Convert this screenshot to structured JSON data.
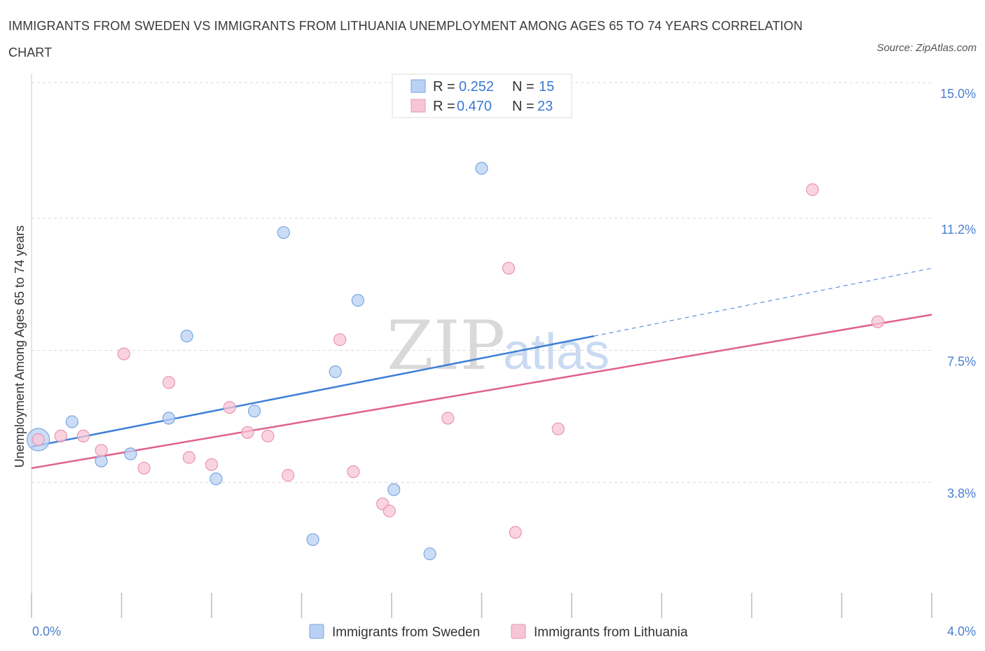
{
  "title": "IMMIGRANTS FROM SWEDEN VS IMMIGRANTS FROM LITHUANIA UNEMPLOYMENT AMONG AGES 65 TO 74 YEARS CORRELATION CHART",
  "source": "Source: ZipAtlas.com",
  "watermark": {
    "zip": "ZIP",
    "atlas": "atlas"
  },
  "colors": {
    "sweden_fill": "#b9d1f3",
    "sweden_stroke": "#7ba6e0",
    "sweden_line": "#3f7fd6",
    "lithuania_fill": "#f7c6d6",
    "lithuania_stroke": "#e895b2",
    "lithuania_line": "#e0608e",
    "grid": "#d8d8d8",
    "axis_text": "#4a7fd0"
  },
  "legend": {
    "sweden": {
      "r_label": "R = ",
      "r_value": "0.252",
      "n_label": "N = ",
      "n_value": "15"
    },
    "lithuania": {
      "r_label": "R = ",
      "r_value": "0.470",
      "n_label": "N = ",
      "n_value": "23"
    }
  },
  "chart_data": {
    "type": "scatter",
    "title": "IMMIGRANTS FROM SWEDEN VS IMMIGRANTS FROM LITHUANIA UNEMPLOYMENT AMONG AGES 65 TO 74 YEARS CORRELATION CHART",
    "xlabel": "",
    "ylabel": "Unemployment Among Ages 65 to 74 years",
    "xlim": [
      0.0,
      4.0
    ],
    "ylim": [
      0.0,
      15.0
    ],
    "x_tick_labels": [
      "0.0%",
      "4.0%"
    ],
    "y_ticks": [
      3.8,
      7.5,
      11.2,
      15.0
    ],
    "y_tick_labels": [
      "3.8%",
      "7.5%",
      "11.2%",
      "15.0%"
    ],
    "grid": true,
    "legend_position": "top-center",
    "series": [
      {
        "name": "Immigrants from Sweden",
        "color": "#7ba6e0",
        "points": [
          {
            "x": 0.03,
            "y": 5.0,
            "big": true
          },
          {
            "x": 0.18,
            "y": 5.5
          },
          {
            "x": 0.31,
            "y": 4.4
          },
          {
            "x": 0.44,
            "y": 4.6
          },
          {
            "x": 0.61,
            "y": 5.6
          },
          {
            "x": 0.69,
            "y": 7.9
          },
          {
            "x": 0.82,
            "y": 3.9
          },
          {
            "x": 0.99,
            "y": 5.8
          },
          {
            "x": 1.12,
            "y": 10.8
          },
          {
            "x": 1.25,
            "y": 2.2
          },
          {
            "x": 1.35,
            "y": 6.9
          },
          {
            "x": 1.45,
            "y": 8.9
          },
          {
            "x": 1.61,
            "y": 3.6
          },
          {
            "x": 1.77,
            "y": 1.8
          },
          {
            "x": 2.0,
            "y": 12.6
          }
        ],
        "trend": {
          "x0": 0.0,
          "y0": 4.8,
          "x1": 2.5,
          "y1": 7.9,
          "dash_to_x": 4.0,
          "dash_to_y": 9.8
        }
      },
      {
        "name": "Immigrants from Lithuania",
        "color": "#e895b2",
        "points": [
          {
            "x": 0.03,
            "y": 5.0
          },
          {
            "x": 0.13,
            "y": 5.1
          },
          {
            "x": 0.23,
            "y": 5.1
          },
          {
            "x": 0.31,
            "y": 4.7
          },
          {
            "x": 0.41,
            "y": 7.4
          },
          {
            "x": 0.5,
            "y": 4.2
          },
          {
            "x": 0.61,
            "y": 6.6
          },
          {
            "x": 0.7,
            "y": 4.5
          },
          {
            "x": 0.8,
            "y": 4.3
          },
          {
            "x": 0.88,
            "y": 5.9
          },
          {
            "x": 0.96,
            "y": 5.2
          },
          {
            "x": 1.05,
            "y": 5.1
          },
          {
            "x": 1.14,
            "y": 4.0
          },
          {
            "x": 1.37,
            "y": 7.8
          },
          {
            "x": 1.43,
            "y": 4.1
          },
          {
            "x": 1.56,
            "y": 3.2
          },
          {
            "x": 1.59,
            "y": 3.0
          },
          {
            "x": 1.85,
            "y": 5.6
          },
          {
            "x": 2.12,
            "y": 9.8
          },
          {
            "x": 2.15,
            "y": 2.4
          },
          {
            "x": 2.34,
            "y": 5.3
          },
          {
            "x": 3.47,
            "y": 12.0
          },
          {
            "x": 3.76,
            "y": 8.3
          }
        ],
        "trend": {
          "x0": 0.0,
          "y0": 4.2,
          "x1": 4.0,
          "y1": 8.5
        }
      }
    ]
  }
}
